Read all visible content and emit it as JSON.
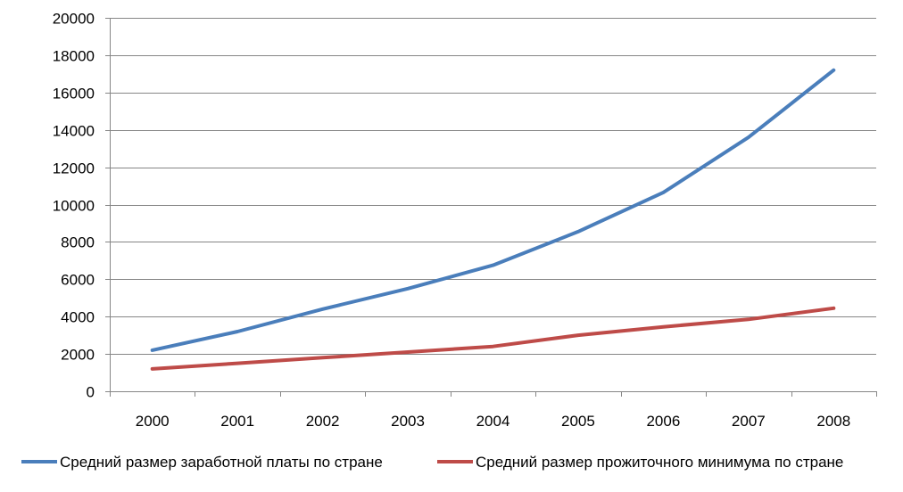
{
  "chart_data": {
    "type": "line",
    "x": [
      "2000",
      "2001",
      "2002",
      "2003",
      "2004",
      "2005",
      "2006",
      "2007",
      "2008"
    ],
    "ylim": [
      0,
      20000
    ],
    "yticks": [
      "0",
      "2000",
      "4000",
      "6000",
      "8000",
      "10000",
      "12000",
      "14000",
      "16000",
      "18000",
      "20000"
    ],
    "grid": "horizontal",
    "legend_position": "bottom",
    "series": [
      {
        "name": "Средний размер заработной платы по стране",
        "color": "#4A7EBB",
        "values": [
          2200,
          3200,
          4400,
          5500,
          6750,
          8550,
          10650,
          13600,
          17200
        ]
      },
      {
        "name": "Средний размер прожиточного минимума по стране",
        "color": "#BE4B48",
        "values": [
          1200,
          1500,
          1800,
          2100,
          2400,
          3000,
          3450,
          3850,
          4450
        ]
      }
    ]
  }
}
